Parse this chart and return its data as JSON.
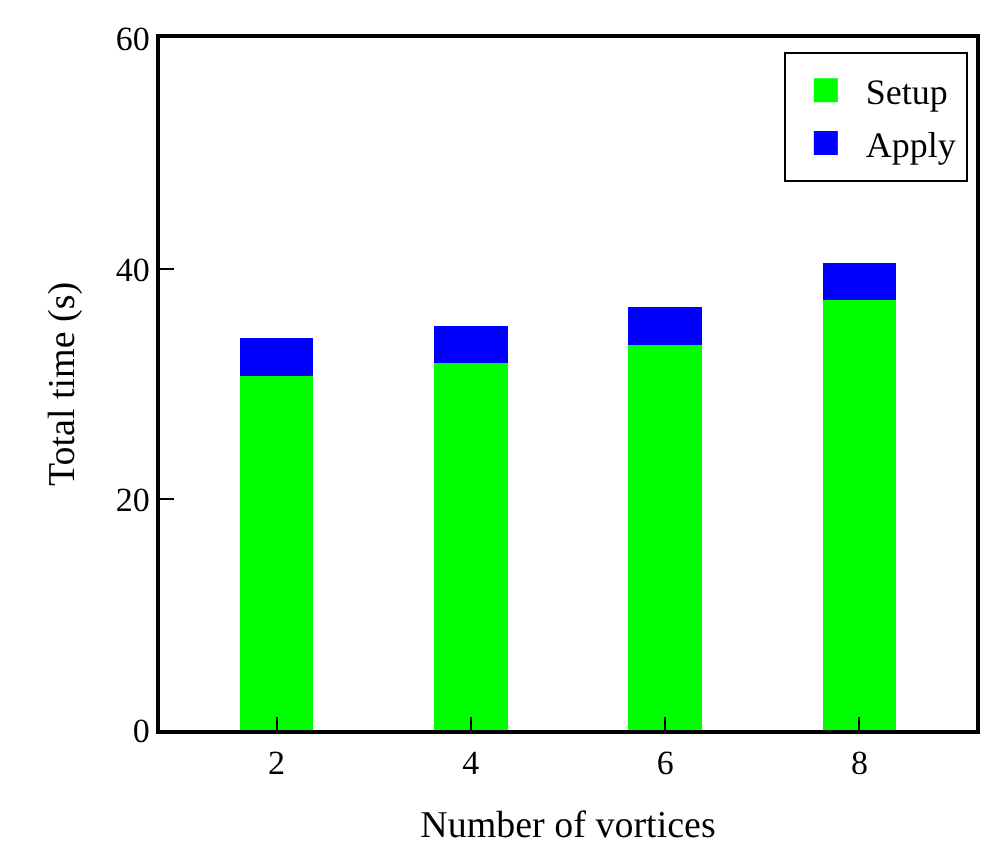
{
  "chart_data": {
    "type": "bar",
    "stacked": true,
    "xlabel": "Number of vortices",
    "ylabel": "Total time (s)",
    "categories": [
      "2",
      "4",
      "6",
      "8"
    ],
    "series": [
      {
        "name": "Setup",
        "color": "#00ff00",
        "values": [
          30.7,
          31.8,
          33.4,
          37.3
        ]
      },
      {
        "name": "Apply",
        "color": "#0000ff",
        "values": [
          3.3,
          3.2,
          3.3,
          3.2
        ]
      }
    ],
    "ylim": [
      0,
      60
    ],
    "yticks": [
      0,
      20,
      40,
      60
    ],
    "legend": "top right"
  }
}
